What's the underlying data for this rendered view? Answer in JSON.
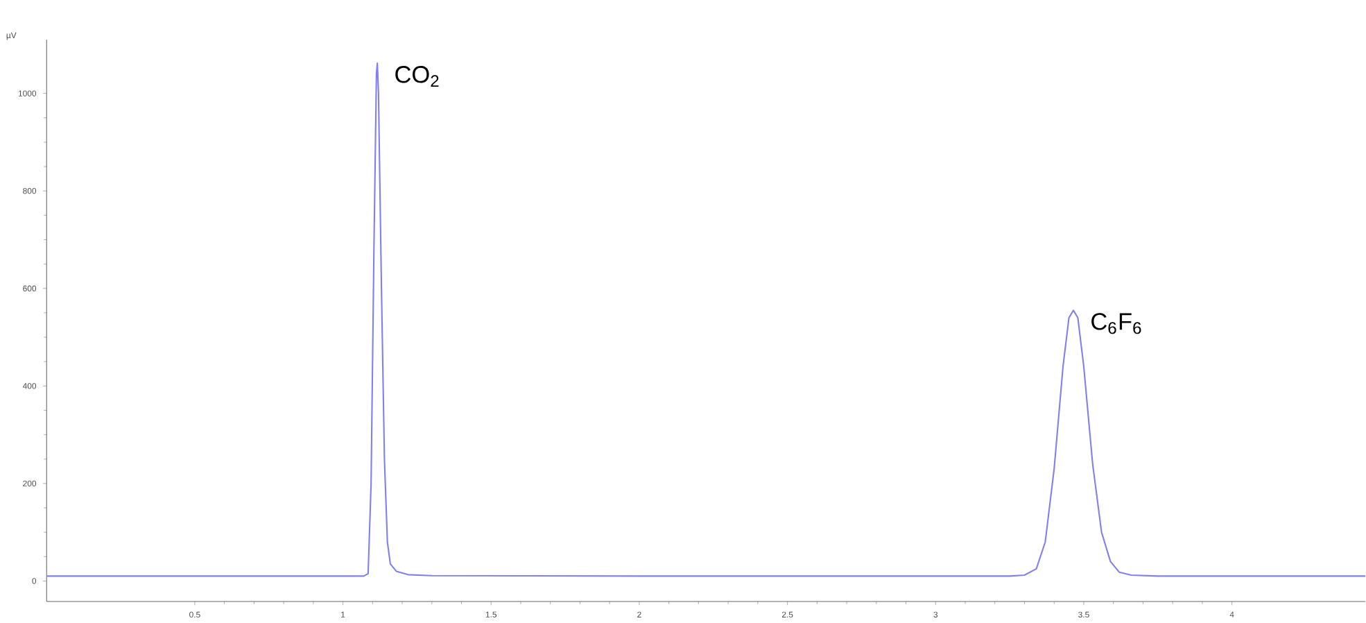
{
  "chart_data": {
    "type": "line",
    "ylabel": "µV",
    "xlim": [
      0,
      4.45
    ],
    "ylim": [
      -42,
      1110
    ],
    "xticks": [
      0.5,
      1,
      1.5,
      2,
      2.5,
      3,
      3.5,
      4
    ],
    "yticks": [
      0,
      200,
      400,
      600,
      800,
      1000
    ],
    "grid": false,
    "marker": "none",
    "line_style": "solid",
    "series": [
      {
        "color": "#8080f0",
        "x": [
          0,
          0.5,
          1.0,
          1.07,
          1.085,
          1.095,
          1.105,
          1.113,
          1.116,
          1.12,
          1.13,
          1.14,
          1.15,
          1.16,
          1.18,
          1.22,
          1.3,
          2.0,
          3.25,
          3.3,
          3.34,
          3.37,
          3.4,
          3.43,
          3.45,
          3.465,
          3.48,
          3.5,
          3.53,
          3.56,
          3.59,
          3.62,
          3.66,
          3.75,
          4.0,
          4.45
        ],
        "values": [
          10,
          10,
          10,
          10,
          15,
          200,
          700,
          1040,
          1062,
          1000,
          600,
          250,
          80,
          35,
          20,
          13,
          11,
          10,
          10,
          12,
          25,
          80,
          230,
          440,
          540,
          555,
          540,
          440,
          240,
          100,
          40,
          18,
          12,
          10,
          10,
          10
        ]
      }
    ],
    "annotations": [
      {
        "text": "CO$_{2}$",
        "x": 1.116,
        "y": 1062
      },
      {
        "text": "C$_{6}$F$_{6}$",
        "x": 3.465,
        "y": 555
      }
    ]
  }
}
